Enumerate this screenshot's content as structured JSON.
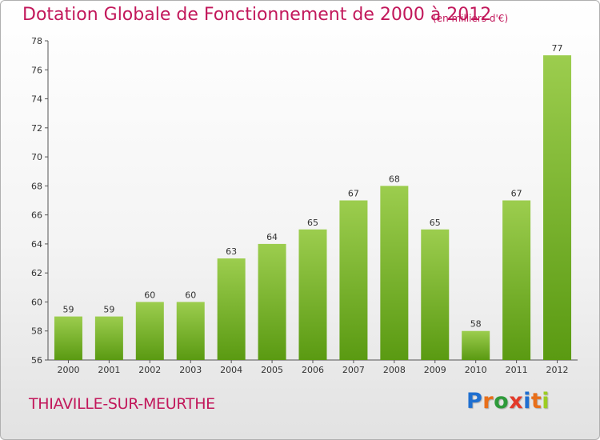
{
  "header": {
    "title": "Dotation Globale de Fonctionnement de 2000 à 2012",
    "unit_note": "(en milliers d'€)"
  },
  "footer": {
    "commune": "THIAVILLE-SUR-MEURTHE",
    "logo": "Proxiti"
  },
  "colors": {
    "title": "#c2185b",
    "bar_top": "#9ccd4e",
    "bar_bottom": "#5a9a12",
    "logo_letters": [
      "#1f6fd0",
      "#e86f1a",
      "#2e9a3a",
      "#e33a2a",
      "#1f6fd0",
      "#e86f1a",
      "#9ccd22"
    ]
  },
  "chart_data": {
    "type": "bar",
    "title": "Dotation Globale de Fonctionnement de 2000 à 2012",
    "subtitle": "(en milliers d'€)",
    "xlabel": "",
    "ylabel": "",
    "categories": [
      "2000",
      "2001",
      "2002",
      "2003",
      "2004",
      "2005",
      "2006",
      "2007",
      "2008",
      "2009",
      "2010",
      "2011",
      "2012"
    ],
    "values": [
      59,
      59,
      60,
      60,
      63,
      64,
      65,
      67,
      68,
      65,
      58,
      67,
      77
    ],
    "ylim": [
      56,
      78
    ],
    "yticks": [
      56,
      58,
      60,
      62,
      64,
      66,
      68,
      70,
      72,
      74,
      76,
      78
    ],
    "grid": false,
    "legend": "none"
  }
}
